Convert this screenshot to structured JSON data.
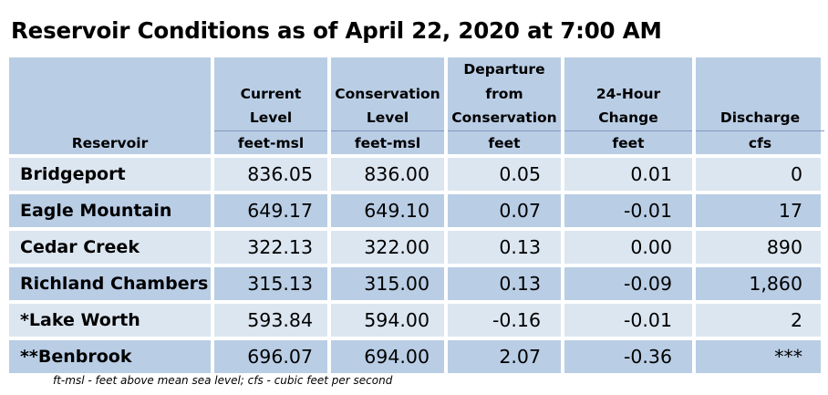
{
  "title": "Reservoir Conditions as of April 22, 2020 at 7:00 AM",
  "headers": {
    "reservoir": [
      "Reservoir"
    ],
    "current": [
      "Current",
      "Level"
    ],
    "current_unit": "feet-msl",
    "conservation": [
      "Conservation",
      "Level"
    ],
    "conservation_unit": "feet-msl",
    "departure": [
      "Departure",
      "from",
      "Conservation"
    ],
    "departure_unit": "feet",
    "change": [
      "24-Hour",
      "Change"
    ],
    "change_unit": "feet",
    "discharge": [
      "Discharge"
    ],
    "discharge_unit": "cfs"
  },
  "rows": [
    {
      "name": "Bridgeport",
      "current": "836.05",
      "conservation": "836.00",
      "departure": "0.05",
      "change": "0.01",
      "discharge": "0"
    },
    {
      "name": "Eagle Mountain",
      "current": "649.17",
      "conservation": "649.10",
      "departure": "0.07",
      "change": "-0.01",
      "discharge": "17"
    },
    {
      "name": "Cedar Creek",
      "current": "322.13",
      "conservation": "322.00",
      "departure": "0.13",
      "change": "0.00",
      "discharge": "890"
    },
    {
      "name": "Richland Chambers",
      "current": "315.13",
      "conservation": "315.00",
      "departure": "0.13",
      "change": "-0.09",
      "discharge": "1,860"
    },
    {
      "name": "*Lake Worth",
      "current": "593.84",
      "conservation": "594.00",
      "departure": "-0.16",
      "change": "-0.01",
      "discharge": "2"
    },
    {
      "name": "**Benbrook",
      "current": "696.07",
      "conservation": "694.00",
      "departure": "2.07",
      "change": "-0.36",
      "discharge": "***"
    }
  ],
  "footnote": "ft-msl - feet above mean sea level; cfs - cubic feet per second",
  "colors": {
    "header_bg": "#b9cde5",
    "row_light": "#dce6f1",
    "row_dark": "#b9cde5"
  }
}
